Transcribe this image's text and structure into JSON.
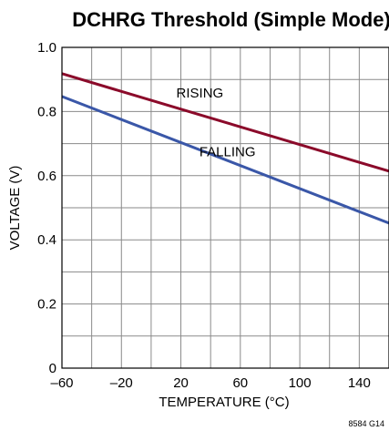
{
  "chart_data": {
    "type": "line",
    "title": "DCHRG Threshold (Simple Mode)",
    "xlabel": "TEMPERATURE (°C)",
    "ylabel": "VOLTAGE (V)",
    "xlim": [
      -60,
      160
    ],
    "ylim": [
      0,
      1.0
    ],
    "x_ticks": [
      -60,
      -40,
      -20,
      0,
      20,
      40,
      60,
      80,
      100,
      120,
      140,
      160
    ],
    "x_tick_labels": [
      "–60",
      "",
      "–20",
      "",
      "20",
      "",
      "60",
      "",
      "100",
      "",
      "140",
      ""
    ],
    "y_ticks": [
      0,
      0.1,
      0.2,
      0.3,
      0.4,
      0.5,
      0.6,
      0.7,
      0.8,
      0.9,
      1.0
    ],
    "y_tick_labels": [
      "0",
      "",
      "0.2",
      "",
      "0.4",
      "",
      "0.6",
      "",
      "0.8",
      "",
      "1.0"
    ],
    "grid": true,
    "series": [
      {
        "name": "RISING",
        "color": "#8b0a2a",
        "x": [
          -60,
          160
        ],
        "y": [
          0.918,
          0.614
        ]
      },
      {
        "name": "FALLING",
        "color": "#3a57a8",
        "x": [
          -60,
          160
        ],
        "y": [
          0.847,
          0.452
        ]
      }
    ],
    "figure_note": "8584 G14"
  }
}
